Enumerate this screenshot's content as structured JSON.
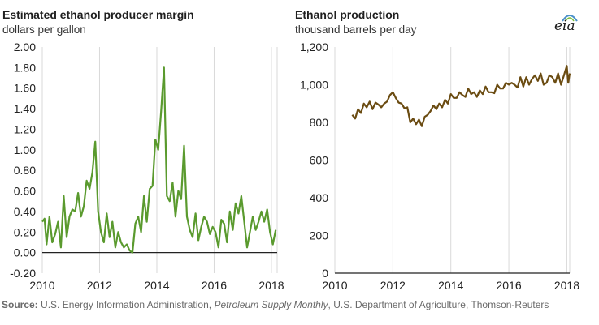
{
  "left_title": "Estimated ethanol producer margin",
  "left_subtitle": "dollars per gallon",
  "right_title": "Ethanol production",
  "right_subtitle": "thousand barrels per day",
  "logo": "eia",
  "source": {
    "label": "Source:",
    "text1": " U.S. Energy Information Administration, ",
    "italic": "Petroleum Supply Monthly",
    "text2": ", U.S. Department of Agriculture, Thomson-Reuters"
  },
  "colors": {
    "margin_line": "#5a9a2e",
    "production_line": "#6b4c12",
    "grid": "#d9d9d9",
    "zero_line": "#222222"
  },
  "chart_data": [
    {
      "type": "line",
      "title": "Estimated ethanol producer margin",
      "ylabel": "dollars per gallon",
      "xlim": [
        2010,
        2018.2
      ],
      "ylim": [
        -0.2,
        2.0
      ],
      "x_ticks": [
        "2010",
        "2012",
        "2014",
        "2016",
        "2018"
      ],
      "y_ticks": [
        "2.00",
        "1.80",
        "1.60",
        "1.40",
        "1.20",
        "1.00",
        "0.80",
        "0.60",
        "0.40",
        "0.20",
        "0.00",
        "-0.20"
      ],
      "grid": "vertical",
      "series": [
        {
          "x": [
            2010.0,
            2010.08,
            2010.15,
            2010.25,
            2010.35,
            2010.45,
            2010.55,
            2010.65,
            2010.75,
            2010.85,
            2010.95,
            2011.05,
            2011.15,
            2011.25,
            2011.35,
            2011.45,
            2011.55,
            2011.65,
            2011.75,
            2011.85,
            2011.95,
            2012.05,
            2012.15,
            2012.25,
            2012.35,
            2012.45,
            2012.55,
            2012.65,
            2012.75,
            2012.85,
            2012.95,
            2013.05,
            2013.15,
            2013.25,
            2013.35,
            2013.45,
            2013.55,
            2013.65,
            2013.75,
            2013.85,
            2013.95,
            2014.05,
            2014.15,
            2014.25,
            2014.35,
            2014.45,
            2014.55,
            2014.65,
            2014.75,
            2014.85,
            2014.95,
            2015.05,
            2015.15,
            2015.25,
            2015.35,
            2015.45,
            2015.55,
            2015.65,
            2015.75,
            2015.85,
            2015.95,
            2016.05,
            2016.15,
            2016.25,
            2016.35,
            2016.45,
            2016.55,
            2016.65,
            2016.75,
            2016.85,
            2016.95,
            2017.05,
            2017.15,
            2017.25,
            2017.35,
            2017.45,
            2017.55,
            2017.65,
            2017.75,
            2017.85,
            2017.95,
            2018.05,
            2018.15
          ],
          "y": [
            0.3,
            0.33,
            0.08,
            0.35,
            0.1,
            0.18,
            0.3,
            0.05,
            0.55,
            0.15,
            0.35,
            0.42,
            0.4,
            0.58,
            0.35,
            0.45,
            0.7,
            0.62,
            0.78,
            1.08,
            0.4,
            0.2,
            0.1,
            0.38,
            0.15,
            0.3,
            0.05,
            0.2,
            0.1,
            0.05,
            0.08,
            0.02,
            0.0,
            0.28,
            0.35,
            0.2,
            0.55,
            0.3,
            0.62,
            0.65,
            1.1,
            1.0,
            1.38,
            1.8,
            0.55,
            0.5,
            0.68,
            0.35,
            0.6,
            0.52,
            1.04,
            0.35,
            0.22,
            0.15,
            0.38,
            0.12,
            0.25,
            0.35,
            0.3,
            0.18,
            0.25,
            0.2,
            0.05,
            0.32,
            0.28,
            0.1,
            0.4,
            0.22,
            0.48,
            0.38,
            0.55,
            0.3,
            0.05,
            0.2,
            0.35,
            0.22,
            0.3,
            0.4,
            0.3,
            0.42,
            0.2,
            0.08,
            0.22
          ]
        }
      ]
    },
    {
      "type": "line",
      "title": "Ethanol production",
      "ylabel": "thousand barrels per day",
      "xlim": [
        2010,
        2018.1
      ],
      "ylim": [
        0,
        1200
      ],
      "x_ticks": [
        "2010",
        "2012",
        "2014",
        "2016",
        "2018"
      ],
      "y_ticks": [
        "1,200",
        "1,000",
        "800",
        "600",
        "400",
        "200",
        "0"
      ],
      "grid": "vertical",
      "series": [
        {
          "x": [
            2010.6,
            2010.7,
            2010.8,
            2010.9,
            2011.0,
            2011.1,
            2011.2,
            2011.3,
            2011.4,
            2011.5,
            2011.6,
            2011.7,
            2011.8,
            2011.9,
            2012.0,
            2012.1,
            2012.2,
            2012.3,
            2012.4,
            2012.5,
            2012.6,
            2012.7,
            2012.8,
            2012.9,
            2013.0,
            2013.1,
            2013.2,
            2013.3,
            2013.4,
            2013.5,
            2013.6,
            2013.7,
            2013.8,
            2013.9,
            2014.0,
            2014.1,
            2014.2,
            2014.3,
            2014.4,
            2014.5,
            2014.6,
            2014.7,
            2014.8,
            2014.9,
            2015.0,
            2015.1,
            2015.2,
            2015.3,
            2015.4,
            2015.5,
            2015.6,
            2015.7,
            2015.8,
            2015.9,
            2016.0,
            2016.1,
            2016.2,
            2016.3,
            2016.4,
            2016.5,
            2016.6,
            2016.7,
            2016.8,
            2016.9,
            2017.0,
            2017.1,
            2017.2,
            2017.3,
            2017.4,
            2017.5,
            2017.6,
            2017.7,
            2017.8,
            2017.9,
            2018.0,
            2018.05,
            2018.1
          ],
          "y": [
            840,
            820,
            870,
            850,
            900,
            880,
            910,
            870,
            905,
            895,
            880,
            900,
            910,
            945,
            960,
            930,
            905,
            900,
            875,
            880,
            800,
            820,
            790,
            815,
            780,
            830,
            840,
            860,
            890,
            870,
            900,
            880,
            920,
            900,
            950,
            930,
            930,
            960,
            945,
            935,
            980,
            950,
            960,
            935,
            970,
            950,
            990,
            960,
            960,
            955,
            1000,
            980,
            980,
            1010,
            1000,
            1010,
            1000,
            985,
            1040,
            990,
            1040,
            1000,
            1030,
            1050,
            1020,
            1060,
            1000,
            1010,
            1050,
            1040,
            1010,
            1060,
            1000,
            1050,
            1100,
            1010,
            1060
          ]
        }
      ]
    }
  ]
}
